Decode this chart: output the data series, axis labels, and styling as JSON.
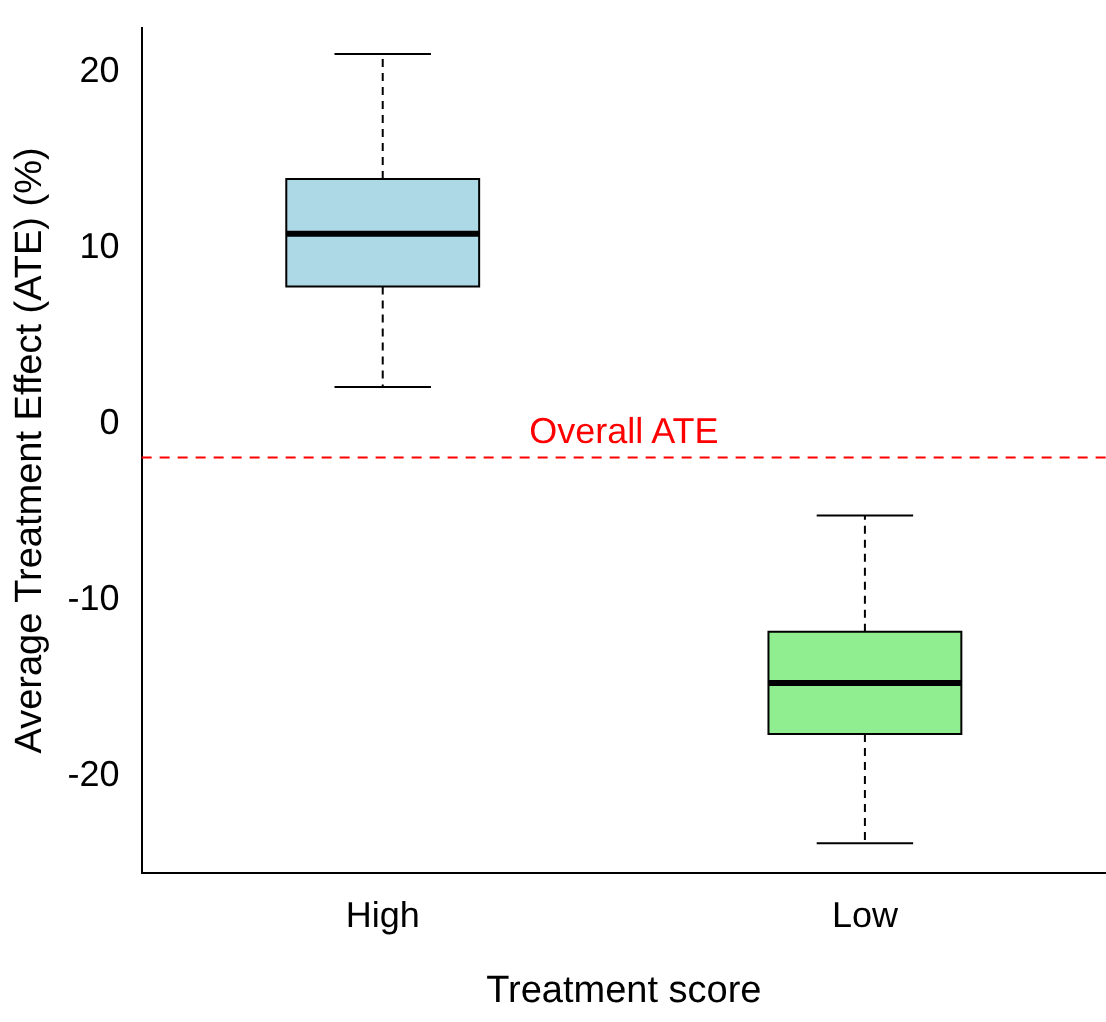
{
  "chart_data": {
    "type": "box",
    "xlabel": "Treatment score",
    "ylabel": "Average Treatment Effect (ATE) (%)",
    "categories": [
      "High",
      "Low"
    ],
    "colors": [
      "#add8e6",
      "#90ee90"
    ],
    "boxes": [
      {
        "low": 2.1,
        "q1": 7.8,
        "median": 10.8,
        "q3": 13.9,
        "high": 21
      },
      {
        "low": -23.8,
        "q1": -17.6,
        "median": -14.7,
        "q3": -11.8,
        "high": -5.2
      }
    ],
    "ylim": [
      -25.5,
      22.5
    ],
    "yticks": [
      -20,
      -10,
      0,
      10,
      20
    ],
    "ref_lines": [
      {
        "axis": "y",
        "value": -1.9,
        "label": "Overall ATE",
        "color": "#ff0000",
        "line_style": "dashed"
      }
    ],
    "grid": false,
    "legend": false
  }
}
